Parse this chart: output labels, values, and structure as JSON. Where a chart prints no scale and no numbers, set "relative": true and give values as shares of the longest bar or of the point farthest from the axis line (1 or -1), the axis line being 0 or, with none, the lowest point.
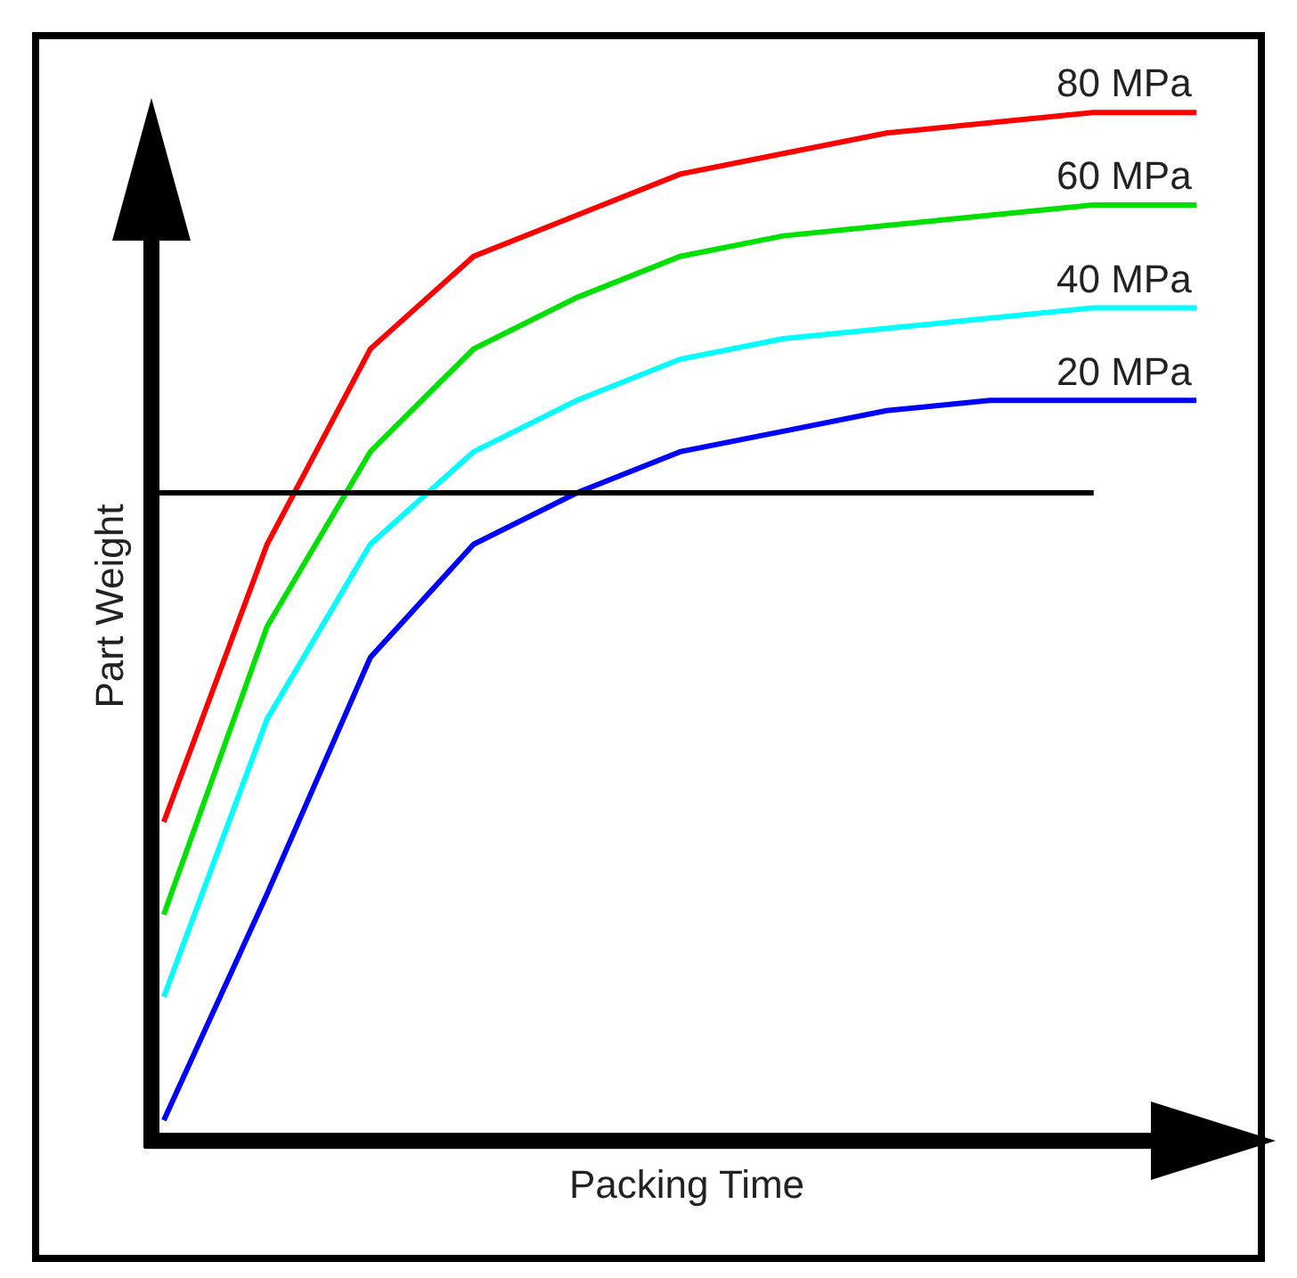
{
  "chart_data": {
    "type": "line",
    "relative": true,
    "xlabel": "Packing Time",
    "ylabel": "Part Weight",
    "categories": [
      null,
      null,
      null,
      null,
      null,
      null,
      null,
      null,
      null,
      null,
      null
    ],
    "series": [
      {
        "name": "80 MPa",
        "color": "#ff0000",
        "values": [
          0.31,
          0.58,
          0.77,
          0.86,
          0.9,
          0.94,
          0.96,
          0.98,
          0.99,
          1.0,
          1.0
        ]
      },
      {
        "name": "60 MPa",
        "color": "#00e000",
        "values": [
          0.22,
          0.5,
          0.67,
          0.77,
          0.82,
          0.86,
          0.88,
          0.89,
          0.9,
          0.91,
          0.91
        ]
      },
      {
        "name": "40 MPa",
        "color": "#00ffff",
        "values": [
          0.14,
          0.41,
          0.58,
          0.67,
          0.72,
          0.76,
          0.78,
          0.79,
          0.8,
          0.81,
          0.81
        ]
      },
      {
        "name": "20 MPa",
        "color": "#0000ff",
        "values": [
          0.02,
          0.24,
          0.47,
          0.58,
          0.63,
          0.67,
          0.69,
          0.71,
          0.72,
          0.72,
          0.72
        ]
      }
    ],
    "ref_lines": [
      {
        "axis": "y",
        "value": 0.63,
        "color": "#000000"
      }
    ],
    "grid": false,
    "legend": false,
    "marker": "none",
    "line_style": "solid"
  }
}
